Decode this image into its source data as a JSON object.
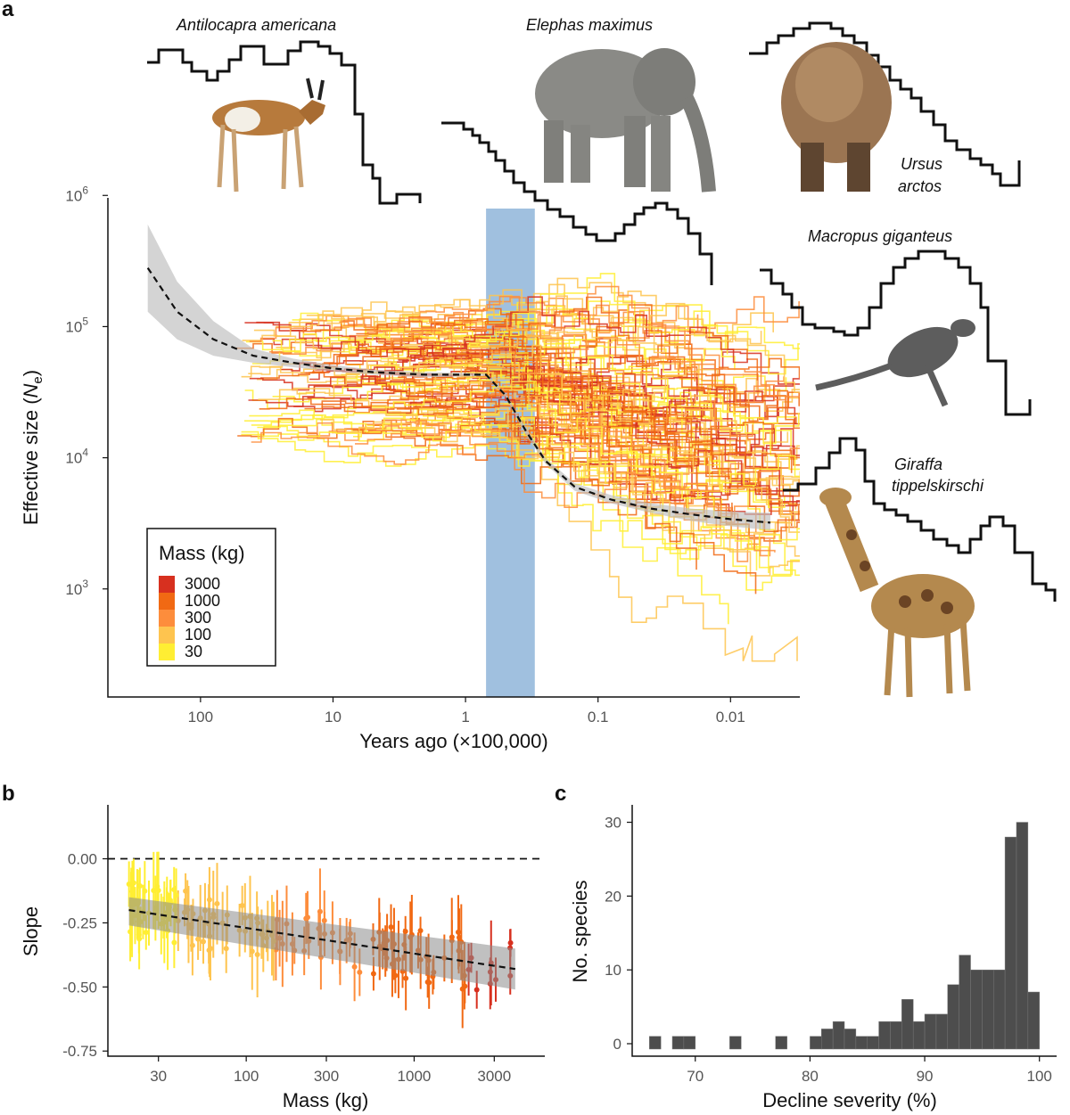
{
  "panels": {
    "a": "a",
    "b": "b",
    "c": "c"
  },
  "chart_data": [
    {
      "type": "line",
      "xlabel": "Years ago (×100,000)",
      "ylabel": "Effective size (Ne)",
      "ylabel_main": "Effective size (",
      "ylabel_italic": "N",
      "ylabel_sub": "e",
      "ylabel_close": ")",
      "x_scale": "log, reversed",
      "y_scale": "log",
      "x_ticks": [
        100,
        10,
        1,
        0.1,
        0.01
      ],
      "x_tick_labels": [
        "100",
        "10",
        "1",
        "0.1",
        "0.01"
      ],
      "y_ticks": [
        1000,
        10000,
        100000,
        1000000
      ],
      "y_tick_base": "10",
      "y_tick_exponents": [
        "3",
        "4",
        "5",
        "6"
      ],
      "xlim": [
        500,
        0.003
      ],
      "ylim": [
        150,
        900000
      ],
      "shaded_band_x": [
        0.7,
        0.3
      ],
      "shaded_band_color": "#8fb5d9",
      "legend": {
        "title": "Mass (kg)",
        "labels": [
          "3000",
          "1000",
          "300",
          "100",
          "30"
        ],
        "colors": [
          "#d7301f",
          "#f16913",
          "#fd8d3c",
          "#fec44f",
          "#ffee33"
        ],
        "placement": "bottom-left"
      },
      "fit_curve": {
        "x": [
          250,
          150,
          80,
          40,
          20,
          10,
          5,
          2,
          1.2,
          0.7,
          0.5,
          0.35,
          0.25,
          0.15,
          0.08,
          0.04,
          0.02,
          0.01,
          0.005
        ],
        "y": [
          280000,
          130000,
          80000,
          60000,
          53000,
          48000,
          45000,
          43000,
          43000,
          43000,
          30000,
          16000,
          9500,
          6000,
          4800,
          4100,
          3700,
          3400,
          3200
        ],
        "ci_upper": [
          600000,
          220000,
          110000,
          68000,
          57000,
          51000,
          47000,
          45000,
          44500,
          44000,
          31000,
          17000,
          10000,
          6400,
          5200,
          4500,
          4100,
          3900,
          3800
        ],
        "ci_lower": [
          130000,
          80000,
          60000,
          53000,
          49000,
          45500,
          43000,
          41000,
          41500,
          42000,
          29000,
          15000,
          9000,
          5600,
          4500,
          3800,
          3300,
          3000,
          2800
        ]
      },
      "species": [
        {
          "name": "Antilocapra americana"
        },
        {
          "name": "Elephas maximus"
        },
        {
          "name": "Ursus arctos"
        },
        {
          "name": "Macropus giganteus"
        },
        {
          "name": "Giraffa tippelskirschi"
        }
      ]
    },
    {
      "type": "scatter",
      "xlabel": "Mass (kg)",
      "ylabel": "Slope",
      "x_scale": "log",
      "x_ticks": [
        30,
        100,
        300,
        1000,
        3000
      ],
      "x_tick_labels": [
        "30",
        "100",
        "300",
        "1000",
        "3000"
      ],
      "y_ticks": [
        0.0,
        -0.25,
        -0.5,
        -0.75
      ],
      "y_tick_labels": [
        "0.00",
        "-0.25",
        "-0.50",
        "-0.75"
      ],
      "xlim": [
        15,
        6000
      ],
      "ylim": [
        -0.77,
        0.2
      ],
      "reference_line_y": 0,
      "fit_line": {
        "x": [
          20,
          4000
        ],
        "y": [
          -0.2,
          -0.43
        ]
      },
      "fit_ci": {
        "x": [
          20,
          4000
        ],
        "upper": [
          -0.15,
          -0.35
        ],
        "lower": [
          -0.26,
          -0.51
        ]
      }
    },
    {
      "type": "bar",
      "xlabel": "Decline severity (%)",
      "ylabel": "No. species",
      "x_ticks": [
        70,
        80,
        90,
        100
      ],
      "x_tick_labels": [
        "70",
        "80",
        "90",
        "100"
      ],
      "y_ticks": [
        0,
        10,
        20,
        30
      ],
      "y_tick_labels": [
        "0",
        "10",
        "20",
        "30"
      ],
      "xlim": [
        64.5,
        101.5
      ],
      "ylim": [
        0,
        32
      ],
      "bin_width": 1,
      "bin_starts": [
        66,
        68,
        69,
        73,
        77,
        80,
        81,
        82,
        83,
        84,
        85,
        86,
        87,
        88,
        89,
        90,
        91,
        92,
        93,
        94,
        95,
        96,
        97,
        98,
        99,
        100
      ],
      "values": [
        1,
        1,
        1,
        1,
        1,
        1,
        2,
        3,
        2,
        1,
        1,
        3,
        3,
        6,
        3,
        4,
        4,
        8,
        12,
        10,
        10,
        10,
        28,
        30,
        7,
        0
      ],
      "bar_color": "#4d4d4d"
    }
  ]
}
